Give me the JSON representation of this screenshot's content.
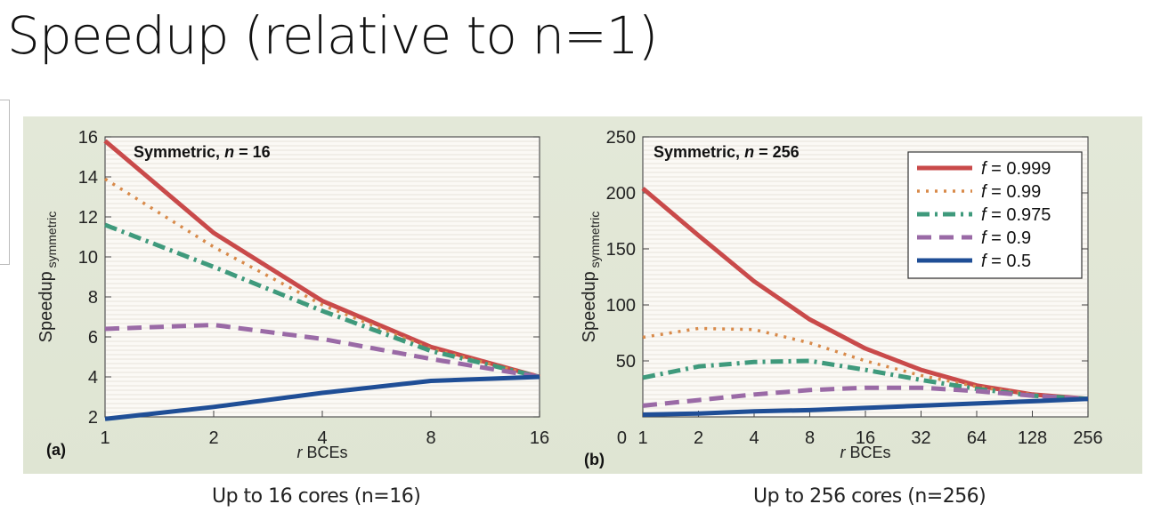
{
  "slide": {
    "title": "Speedup (relative to n=1)",
    "caption_left": "Up to 16 cores (n=16)",
    "caption_right": "Up to 256 cores (n=256)"
  },
  "colors": {
    "background": "#dfe5d3",
    "plot_area": "#fbf9f5",
    "f_0_999": "#c94a4a",
    "f_0_99": "#d88a4a",
    "f_0_975": "#3f9a7c",
    "f_0_9": "#9a6aa6",
    "f_0_5": "#1f4e96"
  },
  "chart_data": [
    {
      "type": "line",
      "panel_label": "(a)",
      "title": "Symmetric, n = 16",
      "xlabel": "r BCEs",
      "ylabel": "Speedup symmetric",
      "x_scale": "log2",
      "x_ticks": [
        1,
        2,
        4,
        8,
        16
      ],
      "x_tick_labels": [
        "1",
        "2",
        "4",
        "8",
        "16"
      ],
      "xlim": [
        1,
        16
      ],
      "y_ticks": [
        2,
        4,
        6,
        8,
        10,
        12,
        14,
        16
      ],
      "ylim": [
        2,
        16
      ],
      "grid": true,
      "legend": "none",
      "x": [
        1,
        2,
        4,
        8,
        16
      ],
      "series": [
        {
          "name": "f = 0.999",
          "style": "solid",
          "color": "#c94a4a",
          "values": [
            15.8,
            11.2,
            7.8,
            5.5,
            4.0
          ]
        },
        {
          "name": "f = 0.99",
          "style": "dotted",
          "color": "#d88a4a",
          "values": [
            13.9,
            10.5,
            7.6,
            5.4,
            4.0
          ]
        },
        {
          "name": "f = 0.975",
          "style": "dashdot",
          "color": "#3f9a7c",
          "values": [
            11.6,
            9.5,
            7.3,
            5.3,
            4.0
          ]
        },
        {
          "name": "f = 0.9",
          "style": "dashed",
          "color": "#9a6aa6",
          "values": [
            6.4,
            6.6,
            5.9,
            4.9,
            4.0
          ]
        },
        {
          "name": "f = 0.5",
          "style": "solid",
          "color": "#1f4e96",
          "values": [
            1.9,
            2.5,
            3.2,
            3.8,
            4.0
          ]
        }
      ]
    },
    {
      "type": "line",
      "panel_label": "(b)",
      "title": "Symmetric, n = 256",
      "xlabel": "r BCEs",
      "ylabel": "Speedup symmetric",
      "x_scale": "log2",
      "x_ticks": [
        1,
        2,
        4,
        8,
        16,
        32,
        64,
        128,
        256
      ],
      "x_tick_labels": [
        "1",
        "2",
        "4",
        "8",
        "16",
        "32",
        "64",
        "128",
        "256"
      ],
      "xlim": [
        1,
        256
      ],
      "y_ticks": [
        50,
        100,
        150,
        200,
        250
      ],
      "y_tick_labels": [
        "50",
        "100",
        "150",
        "200",
        "250"
      ],
      "y_zero_label": "0",
      "ylim": [
        0,
        250
      ],
      "grid": true,
      "legend": "top-right",
      "x": [
        1,
        2,
        4,
        8,
        16,
        32,
        64,
        128,
        256
      ],
      "series": [
        {
          "name": "f = 0.999",
          "style": "solid",
          "color": "#c94a4a",
          "values": [
            204,
            162,
            121,
            87,
            61,
            42,
            28,
            20,
            16
          ]
        },
        {
          "name": "f = 0.99",
          "style": "dotted",
          "color": "#d88a4a",
          "values": [
            71,
            79,
            78,
            66,
            50,
            37,
            27,
            20,
            16
          ]
        },
        {
          "name": "f = 0.975",
          "style": "dashdot",
          "color": "#3f9a7c",
          "values": [
            35,
            45,
            49,
            50,
            42,
            33,
            25,
            19,
            16
          ]
        },
        {
          "name": "f = 0.9",
          "style": "dashed",
          "color": "#9a6aa6",
          "values": [
            10,
            15,
            20,
            24,
            26,
            26,
            23,
            19,
            16
          ]
        },
        {
          "name": "f = 0.5",
          "style": "solid",
          "color": "#1f4e96",
          "values": [
            2,
            3,
            5,
            6,
            8,
            10,
            12,
            14,
            16
          ]
        }
      ]
    }
  ]
}
